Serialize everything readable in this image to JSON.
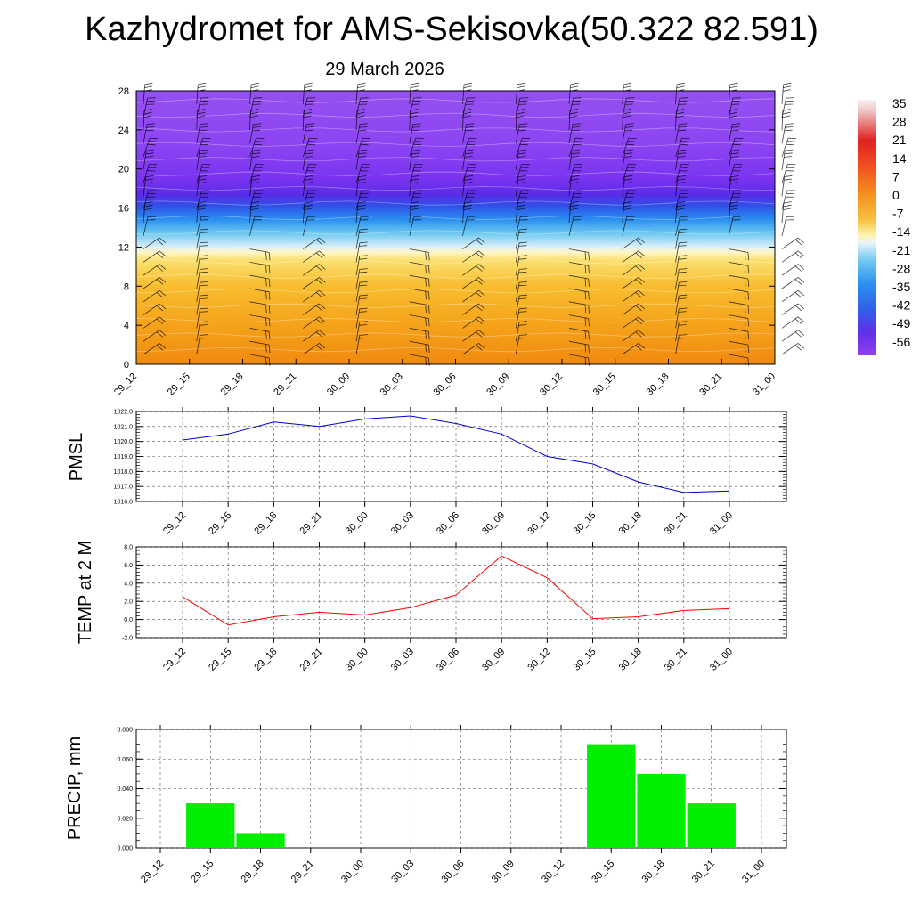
{
  "page_title": "Kazhydromet for AMS-Sekisovka(50.322 82.591)",
  "page_subtitle": "29 March 2026",
  "chart_data": [
    {
      "id": "crosssection",
      "type": "heatmap",
      "title": "",
      "xlabel": "",
      "ylabel": "",
      "x_tick_labels": [
        "29_12",
        "29_15",
        "29_18",
        "29_21",
        "30_00",
        "30_03",
        "30_06",
        "30_09",
        "30_12",
        "30_15",
        "30_18",
        "30_21",
        "31_00"
      ],
      "y_ticks": [
        0,
        4,
        8,
        12,
        16,
        20,
        24,
        28
      ],
      "ylim": [
        0,
        28
      ],
      "temperature_bands": [
        {
          "from": 0,
          "to": 4,
          "value": 3
        },
        {
          "from": 4,
          "to": 8,
          "value": 0
        },
        {
          "from": 8,
          "to": 11,
          "value": -3
        },
        {
          "from": 11,
          "to": 12,
          "value": -7
        },
        {
          "from": 12,
          "to": 14,
          "value": -15
        },
        {
          "from": 14,
          "to": 16,
          "value": -28
        },
        {
          "from": 16,
          "to": 17.5,
          "value": -42
        },
        {
          "from": 17.5,
          "to": 19,
          "value": -53
        },
        {
          "from": 19,
          "to": 28,
          "value": -60
        }
      ],
      "colorbar_labels": [
        "35",
        "28",
        "21",
        "14",
        "7",
        "0",
        "-7",
        "-14",
        "-21",
        "-28",
        "-35",
        "-42",
        "-49",
        "-56"
      ]
    },
    {
      "id": "pmsl",
      "type": "line",
      "ylabel": "PMSL",
      "categories": [
        "29_12",
        "29_15",
        "29_18",
        "29_21",
        "30_00",
        "30_03",
        "30_06",
        "30_09",
        "30_12",
        "30_15",
        "30_18",
        "30_21",
        "31_00"
      ],
      "y_tick_labels": [
        "1022.0",
        "1021.0",
        "1020.0",
        "1019.0",
        "1018.0",
        "1017.0",
        "1016.0"
      ],
      "ylim": [
        1016,
        1022
      ],
      "series": [
        {
          "name": "PMSL",
          "color": "#0000cc",
          "values": [
            1020.1,
            1020.5,
            1021.3,
            1021.0,
            1021.5,
            1021.7,
            1021.2,
            1020.5,
            1019.0,
            1018.5,
            1017.3,
            1016.6,
            1016.7
          ]
        }
      ]
    },
    {
      "id": "temp",
      "type": "line",
      "ylabel": "TEMP at 2 M",
      "categories": [
        "29_12",
        "29_15",
        "29_18",
        "29_21",
        "30_00",
        "30_03",
        "30_06",
        "30_09",
        "30_12",
        "30_15",
        "30_18",
        "30_21",
        "31_00"
      ],
      "y_tick_labels": [
        "8.0",
        "6.0",
        "4.0",
        "2.0",
        "0.0",
        "-2.0"
      ],
      "ylim": [
        -2,
        8
      ],
      "series": [
        {
          "name": "TEMP",
          "color": "#ff0000",
          "values": [
            2.5,
            -0.6,
            0.3,
            0.8,
            0.5,
            1.3,
            2.7,
            7.0,
            4.6,
            0.1,
            0.3,
            1.0,
            1.2
          ]
        }
      ]
    },
    {
      "id": "precip",
      "type": "bar",
      "ylabel": "PRECIP, mm",
      "categories": [
        "29_12",
        "29_15",
        "29_18",
        "29_21",
        "30_00",
        "30_03",
        "30_06",
        "30_09",
        "30_12",
        "30_15",
        "30_18",
        "30_21",
        "31_00"
      ],
      "y_tick_labels": [
        "0.080",
        "0.060",
        "0.040",
        "0.020",
        "0.000"
      ],
      "ylim": [
        0,
        0.08
      ],
      "series": [
        {
          "name": "PRECIP",
          "color": "#00ee00",
          "values": [
            0,
            0.03,
            0.01,
            0,
            0,
            0,
            0,
            0,
            0,
            0.07,
            0.05,
            0.03,
            0
          ]
        }
      ]
    }
  ]
}
